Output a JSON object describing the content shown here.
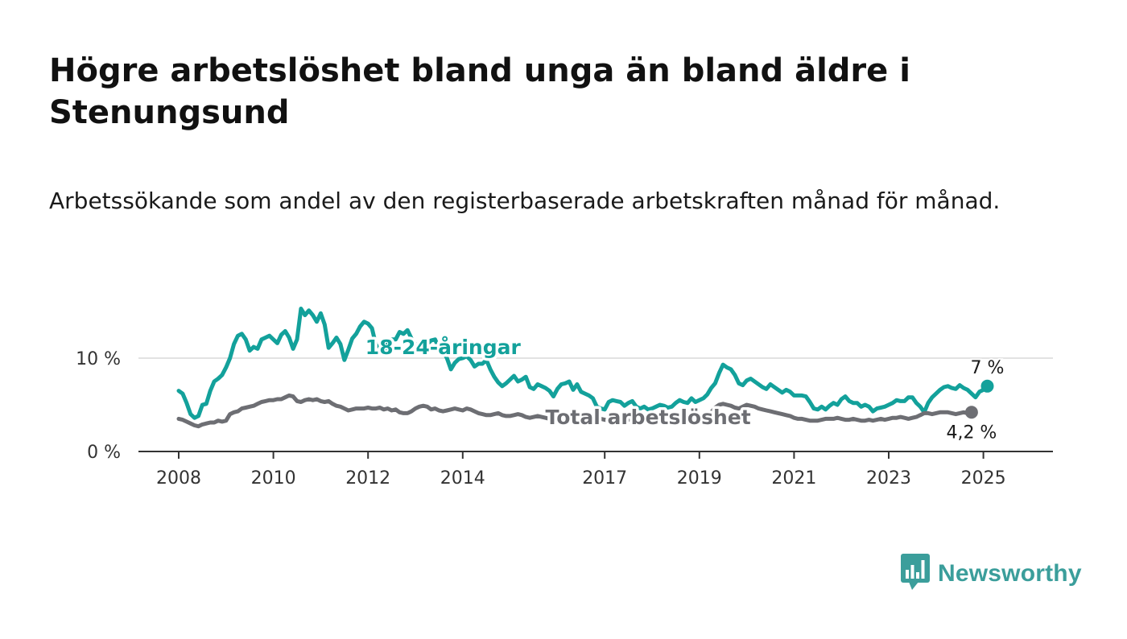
{
  "title": "Högre arbetslöshet bland unga än bland äldre i Stenungsund",
  "subtitle": "Arbetssökande som andel av den registerbaserade arbetskraften månad för månad.",
  "brand": {
    "name": "Newsworthy",
    "color": "#3b9e9b",
    "icon": "bar-chart-speech-bubble-icon"
  },
  "chart_data": {
    "type": "line",
    "x_start": "2008-01",
    "x_frequency": "monthly",
    "ylim": [
      0,
      16
    ],
    "y_ticks": [
      0,
      10
    ],
    "y_tick_labels": [
      "0 %",
      "10 %"
    ],
    "x_ticks": [
      "2008",
      "2010",
      "2012",
      "2014",
      "2017",
      "2019",
      "2021",
      "2023",
      "2025"
    ],
    "grid": "horizontal",
    "series": [
      {
        "name": "18-24-åringar",
        "color": "#13a19b",
        "end_label": "7 %",
        "values": [
          6.5,
          6.2,
          5.2,
          4.0,
          3.6,
          3.8,
          5.0,
          5.1,
          6.5,
          7.5,
          7.8,
          8.2,
          9.0,
          10.0,
          11.5,
          12.4,
          12.6,
          12.0,
          10.8,
          11.2,
          11.0,
          12.0,
          12.2,
          12.4,
          12.0,
          11.6,
          12.5,
          12.9,
          12.2,
          11.0,
          12.0,
          15.3,
          14.6,
          15.1,
          14.6,
          13.9,
          14.8,
          13.6,
          11.1,
          11.6,
          12.2,
          11.5,
          9.8,
          10.9,
          12.1,
          12.6,
          13.4,
          13.9,
          13.7,
          13.2,
          11.4,
          11.2,
          10.8,
          11.5,
          12.0,
          12.0,
          12.8,
          12.6,
          13.0,
          12.1,
          11.5,
          11.0,
          10.5,
          11.5,
          11.9,
          12.0,
          11.0,
          10.7,
          10.0,
          8.8,
          9.5,
          9.9,
          10.0,
          10.2,
          9.8,
          9.1,
          9.4,
          9.4,
          9.8,
          8.8,
          8.0,
          7.4,
          7.0,
          7.3,
          7.7,
          8.1,
          7.5,
          7.7,
          8.0,
          6.9,
          6.7,
          7.2,
          7.0,
          6.8,
          6.5,
          5.9,
          6.7,
          7.2,
          7.3,
          7.5,
          6.6,
          7.2,
          6.4,
          6.2,
          6.0,
          5.7,
          4.8,
          4.6,
          4.5,
          5.3,
          5.5,
          5.4,
          5.3,
          4.9,
          5.2,
          5.4,
          4.8,
          4.6,
          4.8,
          4.5,
          4.6,
          4.8,
          5.0,
          4.9,
          4.7,
          4.8,
          5.2,
          5.5,
          5.3,
          5.2,
          5.7,
          5.3,
          5.5,
          5.7,
          6.1,
          6.8,
          7.3,
          8.4,
          9.3,
          9.0,
          8.8,
          8.2,
          7.3,
          7.1,
          7.6,
          7.8,
          7.5,
          7.2,
          6.9,
          6.7,
          7.2,
          6.9,
          6.6,
          6.3,
          6.6,
          6.4,
          6.0,
          6.0,
          6.0,
          5.9,
          5.3,
          4.6,
          4.5,
          4.8,
          4.5,
          4.9,
          5.2,
          5.0,
          5.6,
          5.9,
          5.4,
          5.2,
          5.2,
          4.8,
          5.0,
          4.8,
          4.3,
          4.6,
          4.7,
          4.8,
          5.0,
          5.2,
          5.5,
          5.4,
          5.4,
          5.8,
          5.8,
          5.2,
          4.8,
          4.2,
          5.2,
          5.8,
          6.2,
          6.6,
          6.9,
          7.0,
          6.8,
          6.7,
          7.1,
          6.8,
          6.6,
          6.2,
          5.8,
          6.4,
          6.6,
          7.0
        ]
      },
      {
        "name": "Total arbetslöshet",
        "color": "#6d6e73",
        "end_label": "4,2 %",
        "values": [
          3.5,
          3.4,
          3.2,
          3.0,
          2.8,
          2.7,
          2.9,
          3.0,
          3.1,
          3.1,
          3.3,
          3.2,
          3.3,
          4.0,
          4.2,
          4.3,
          4.6,
          4.7,
          4.8,
          4.9,
          5.1,
          5.3,
          5.4,
          5.5,
          5.5,
          5.6,
          5.6,
          5.8,
          6.0,
          5.9,
          5.4,
          5.3,
          5.5,
          5.6,
          5.5,
          5.6,
          5.4,
          5.3,
          5.4,
          5.1,
          4.9,
          4.8,
          4.6,
          4.4,
          4.5,
          4.6,
          4.6,
          4.6,
          4.7,
          4.6,
          4.6,
          4.7,
          4.5,
          4.6,
          4.4,
          4.5,
          4.2,
          4.1,
          4.1,
          4.3,
          4.6,
          4.8,
          4.9,
          4.8,
          4.5,
          4.6,
          4.4,
          4.3,
          4.4,
          4.5,
          4.6,
          4.5,
          4.4,
          4.6,
          4.5,
          4.3,
          4.1,
          4.0,
          3.9,
          3.9,
          4.0,
          4.1,
          3.9,
          3.8,
          3.8,
          3.9,
          4.0,
          3.9,
          3.7,
          3.6,
          3.7,
          3.8,
          3.7,
          3.6,
          3.5,
          3.3,
          3.5,
          3.7,
          3.5,
          3.8,
          3.7,
          3.8,
          3.9,
          3.8,
          3.7,
          3.6,
          3.5,
          3.5,
          3.4,
          3.3,
          3.4,
          3.5,
          3.4,
          3.3,
          3.4,
          3.6,
          3.5,
          3.4,
          3.3,
          3.4,
          3.3,
          3.4,
          3.5,
          3.4,
          3.5,
          3.6,
          3.7,
          3.9,
          3.8,
          3.7,
          3.5,
          3.6,
          3.7,
          3.9,
          4.0,
          4.2,
          4.7,
          5.0,
          5.1,
          5.0,
          4.9,
          4.7,
          4.6,
          4.8,
          5.0,
          4.9,
          4.8,
          4.6,
          4.5,
          4.4,
          4.3,
          4.2,
          4.1,
          4.0,
          3.9,
          3.8,
          3.6,
          3.5,
          3.5,
          3.4,
          3.3,
          3.3,
          3.3,
          3.4,
          3.5,
          3.5,
          3.5,
          3.6,
          3.5,
          3.4,
          3.4,
          3.5,
          3.4,
          3.3,
          3.3,
          3.4,
          3.3,
          3.4,
          3.5,
          3.4,
          3.5,
          3.6,
          3.6,
          3.7,
          3.6,
          3.5,
          3.6,
          3.7,
          3.9,
          4.1,
          4.1,
          4.0,
          4.1,
          4.2,
          4.2,
          4.2,
          4.1,
          4.0,
          4.1,
          4.2,
          4.1,
          4.2
        ]
      }
    ]
  }
}
